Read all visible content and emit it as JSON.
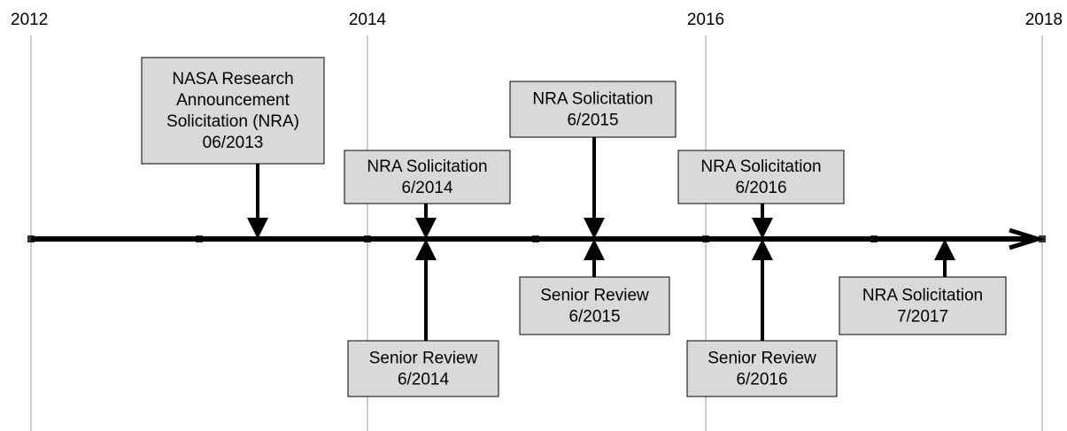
{
  "years": [
    "2012",
    "2014",
    "2016",
    "2018"
  ],
  "events": [
    {
      "lines": [
        "NASA Research",
        "Announcement",
        "Solicitation (NRA)",
        "06/2013"
      ]
    },
    {
      "lines": [
        "NRA Solicitation",
        "6/2014"
      ]
    },
    {
      "lines": [
        "NRA Solicitation",
        "6/2015"
      ]
    },
    {
      "lines": [
        "NRA Solicitation",
        "6/2016"
      ]
    },
    {
      "lines": [
        "Senior Review",
        "6/2014"
      ]
    },
    {
      "lines": [
        "Senior Review",
        "6/2015"
      ]
    },
    {
      "lines": [
        "Senior Review",
        "6/2016"
      ]
    },
    {
      "lines": [
        "NRA Solicitation",
        "7/2017"
      ]
    }
  ]
}
